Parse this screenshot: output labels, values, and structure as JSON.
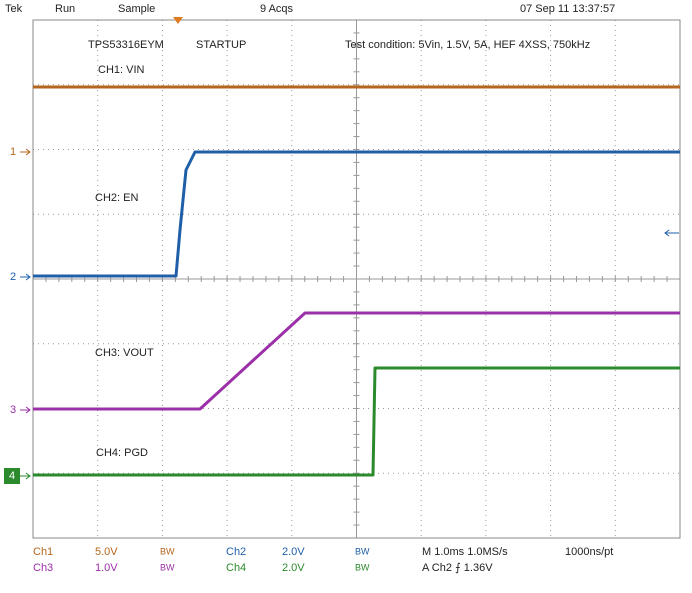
{
  "header": {
    "brand": "Tek",
    "state": "Run",
    "mode": "Sample",
    "acquisitions": "9 Acqs",
    "timestamp": "07 Sep 11 13:37:57"
  },
  "annotations": {
    "device": "TPS53316EYM",
    "phase": "STARTUP",
    "test_condition": "Test condition: 5Vin, 1.5V, 5A, HEF 4XSS, 750kHz"
  },
  "traces": [
    {
      "label": "CH1: VIN",
      "marker": "1"
    },
    {
      "label": "CH2: EN",
      "marker": "2"
    },
    {
      "label": "CH3: VOUT",
      "marker": "3"
    },
    {
      "label": "CH4: PGD",
      "marker": "4"
    }
  ],
  "footer": {
    "channels": [
      {
        "name": "Ch1",
        "scale": "5.0V",
        "bandwidth": "BW"
      },
      {
        "name": "Ch2",
        "scale": "2.0V",
        "bandwidth": "BW"
      },
      {
        "name": "Ch3",
        "scale": "1.0V",
        "bandwidth": "BW"
      },
      {
        "name": "Ch4",
        "scale": "2.0V",
        "bandwidth": "BW"
      }
    ],
    "timebase": "M 1.0ms 1.0MS/s",
    "resolution": "1000ns/pt",
    "trigger": "A  Ch2  ⨍  1.36V"
  }
}
